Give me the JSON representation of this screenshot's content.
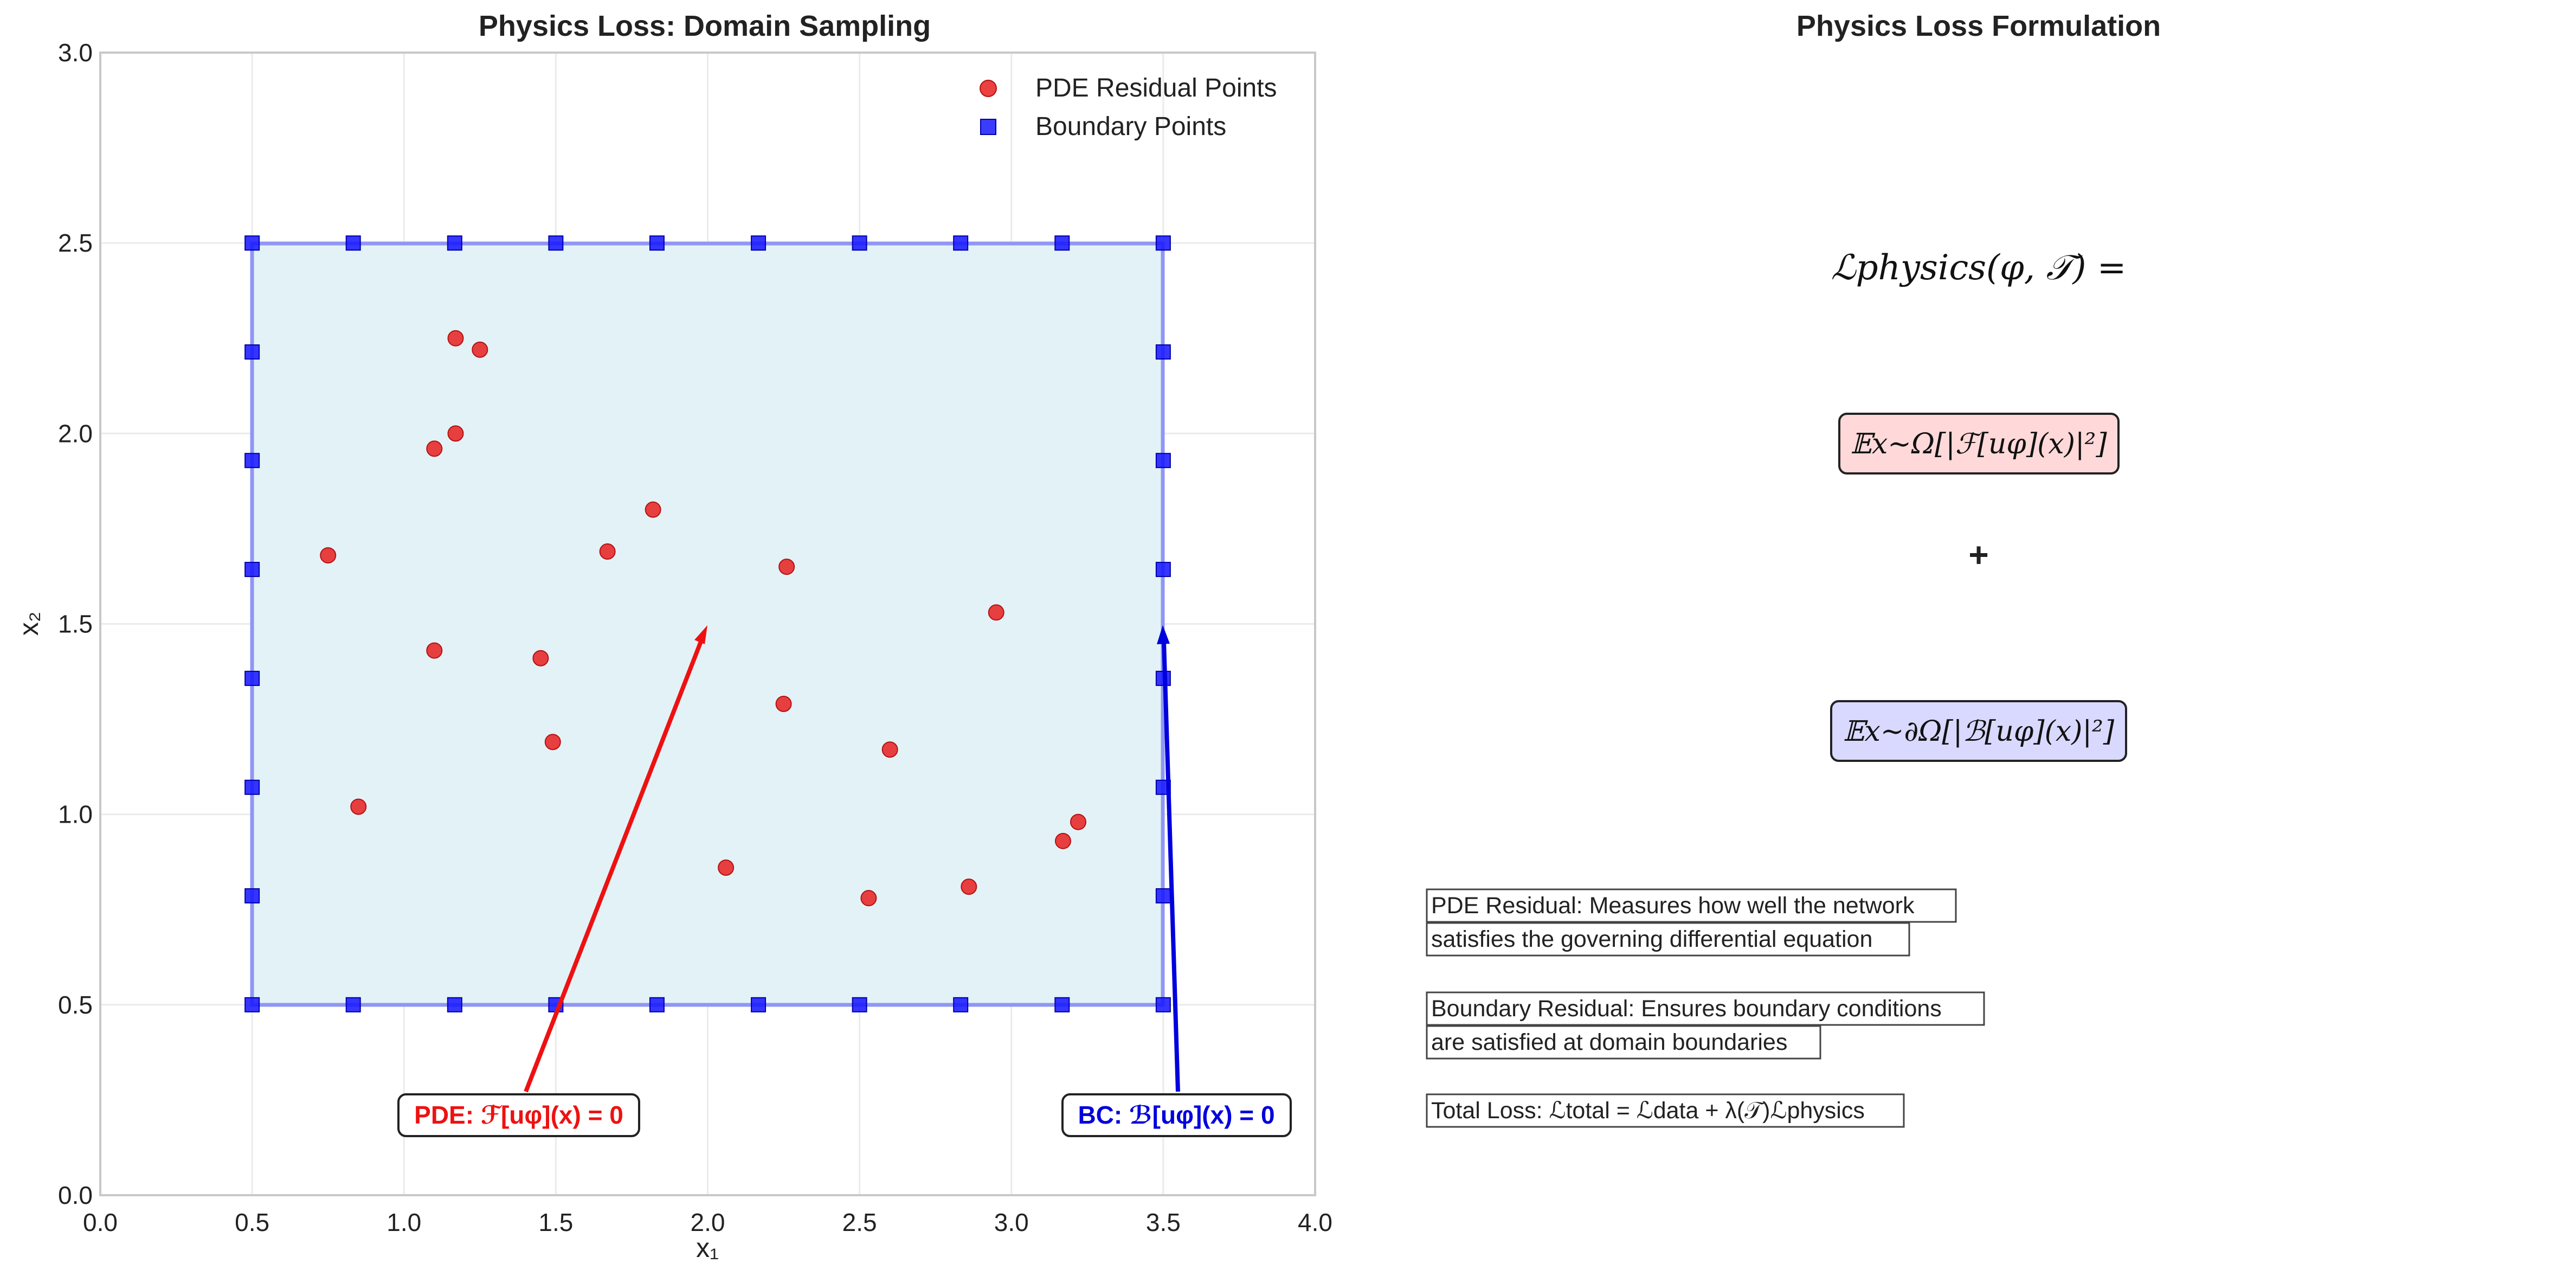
{
  "left_panel": {
    "title": "Physics Loss: Domain Sampling",
    "xlabel": "x₁",
    "ylabel": "x₂",
    "legend": {
      "placement": "top-right",
      "pde_label": "PDE Residual Points",
      "boundary_label": "Boundary Points"
    },
    "pde_annotation": "PDE: ℱ[uφ](x) = 0",
    "bc_annotation": "BC: ℬ[uφ](x) = 0"
  },
  "right_panel": {
    "title": "Physics Loss Formulation",
    "formula_lhs": "ℒphysics(φ, 𝒯) =",
    "term_pde": "𝔼x∼Ω[|ℱ[uφ](x)|²]",
    "plus_sign": "+",
    "term_bc": "𝔼x∼∂Ω[|ℬ[uφ](x)|²]",
    "desc_pde_line1": "PDE Residual: Measures how well the network",
    "desc_pde_line2": "satisfies the governing differential equation",
    "desc_bc_line1": "Boundary Residual: Ensures boundary conditions",
    "desc_bc_line2": "are satisfied at domain boundaries",
    "desc_total": "Total Loss: ℒtotal = ℒdata + λ(𝒯)ℒphysics"
  },
  "colors": {
    "pde": "#e8201f",
    "boundary": "#1a1aff",
    "domain_fill": "#add8e6",
    "domain_edge": "#7f86f2",
    "pde_box": "#ffd9d9",
    "bc_box": "#d9d9ff",
    "annotation_pde_text": "#ee1111",
    "annotation_bc_text": "#0000dd"
  },
  "chart_data": {
    "type": "scatter",
    "xlim": [
      0.0,
      4.0
    ],
    "ylim": [
      0.0,
      3.0
    ],
    "xticks": [
      0.0,
      0.5,
      1.0,
      1.5,
      2.0,
      2.5,
      3.0,
      3.5,
      4.0
    ],
    "yticks": [
      0.0,
      0.5,
      1.0,
      1.5,
      2.0,
      2.5,
      3.0
    ],
    "grid": true,
    "domain": {
      "x": [
        0.5,
        3.5
      ],
      "y": [
        0.5,
        2.5
      ]
    },
    "series": [
      {
        "name": "PDE Residual Points",
        "marker": "circle",
        "points": [
          [
            1.17,
            2.25
          ],
          [
            1.25,
            2.22
          ],
          [
            1.1,
            1.96
          ],
          [
            1.17,
            2.0
          ],
          [
            0.75,
            1.68
          ],
          [
            1.82,
            1.8
          ],
          [
            1.67,
            1.69
          ],
          [
            2.26,
            1.65
          ],
          [
            1.1,
            1.43
          ],
          [
            1.45,
            1.41
          ],
          [
            1.49,
            1.19
          ],
          [
            2.95,
            1.53
          ],
          [
            2.25,
            1.29
          ],
          [
            2.6,
            1.17
          ],
          [
            0.85,
            1.02
          ],
          [
            3.22,
            0.98
          ],
          [
            3.17,
            0.93
          ],
          [
            2.06,
            0.86
          ],
          [
            2.53,
            0.78
          ],
          [
            2.86,
            0.81
          ]
        ]
      },
      {
        "name": "Boundary Points",
        "marker": "square",
        "points": [
          [
            0.5,
            0.5
          ],
          [
            0.833,
            0.5
          ],
          [
            1.167,
            0.5
          ],
          [
            1.5,
            0.5
          ],
          [
            1.833,
            0.5
          ],
          [
            2.167,
            0.5
          ],
          [
            2.5,
            0.5
          ],
          [
            2.833,
            0.5
          ],
          [
            3.167,
            0.5
          ],
          [
            3.5,
            0.5
          ],
          [
            0.5,
            2.5
          ],
          [
            0.833,
            2.5
          ],
          [
            1.167,
            2.5
          ],
          [
            1.5,
            2.5
          ],
          [
            1.833,
            2.5
          ],
          [
            2.167,
            2.5
          ],
          [
            2.5,
            2.5
          ],
          [
            2.833,
            2.5
          ],
          [
            3.167,
            2.5
          ],
          [
            3.5,
            2.5
          ],
          [
            0.5,
            0.786
          ],
          [
            0.5,
            1.071
          ],
          [
            0.5,
            1.357
          ],
          [
            0.5,
            1.643
          ],
          [
            0.5,
            1.929
          ],
          [
            0.5,
            2.214
          ],
          [
            3.5,
            0.786
          ],
          [
            3.5,
            1.071
          ],
          [
            3.5,
            1.357
          ],
          [
            3.5,
            1.643
          ],
          [
            3.5,
            1.929
          ],
          [
            3.5,
            2.214
          ]
        ]
      }
    ],
    "arrows": [
      {
        "label": "PDE",
        "from": [
          1.4,
          0.28
        ],
        "to": [
          2.0,
          1.5
        ]
      },
      {
        "label": "BC",
        "from": [
          3.55,
          0.28
        ],
        "to": [
          3.5,
          1.5
        ]
      }
    ]
  }
}
